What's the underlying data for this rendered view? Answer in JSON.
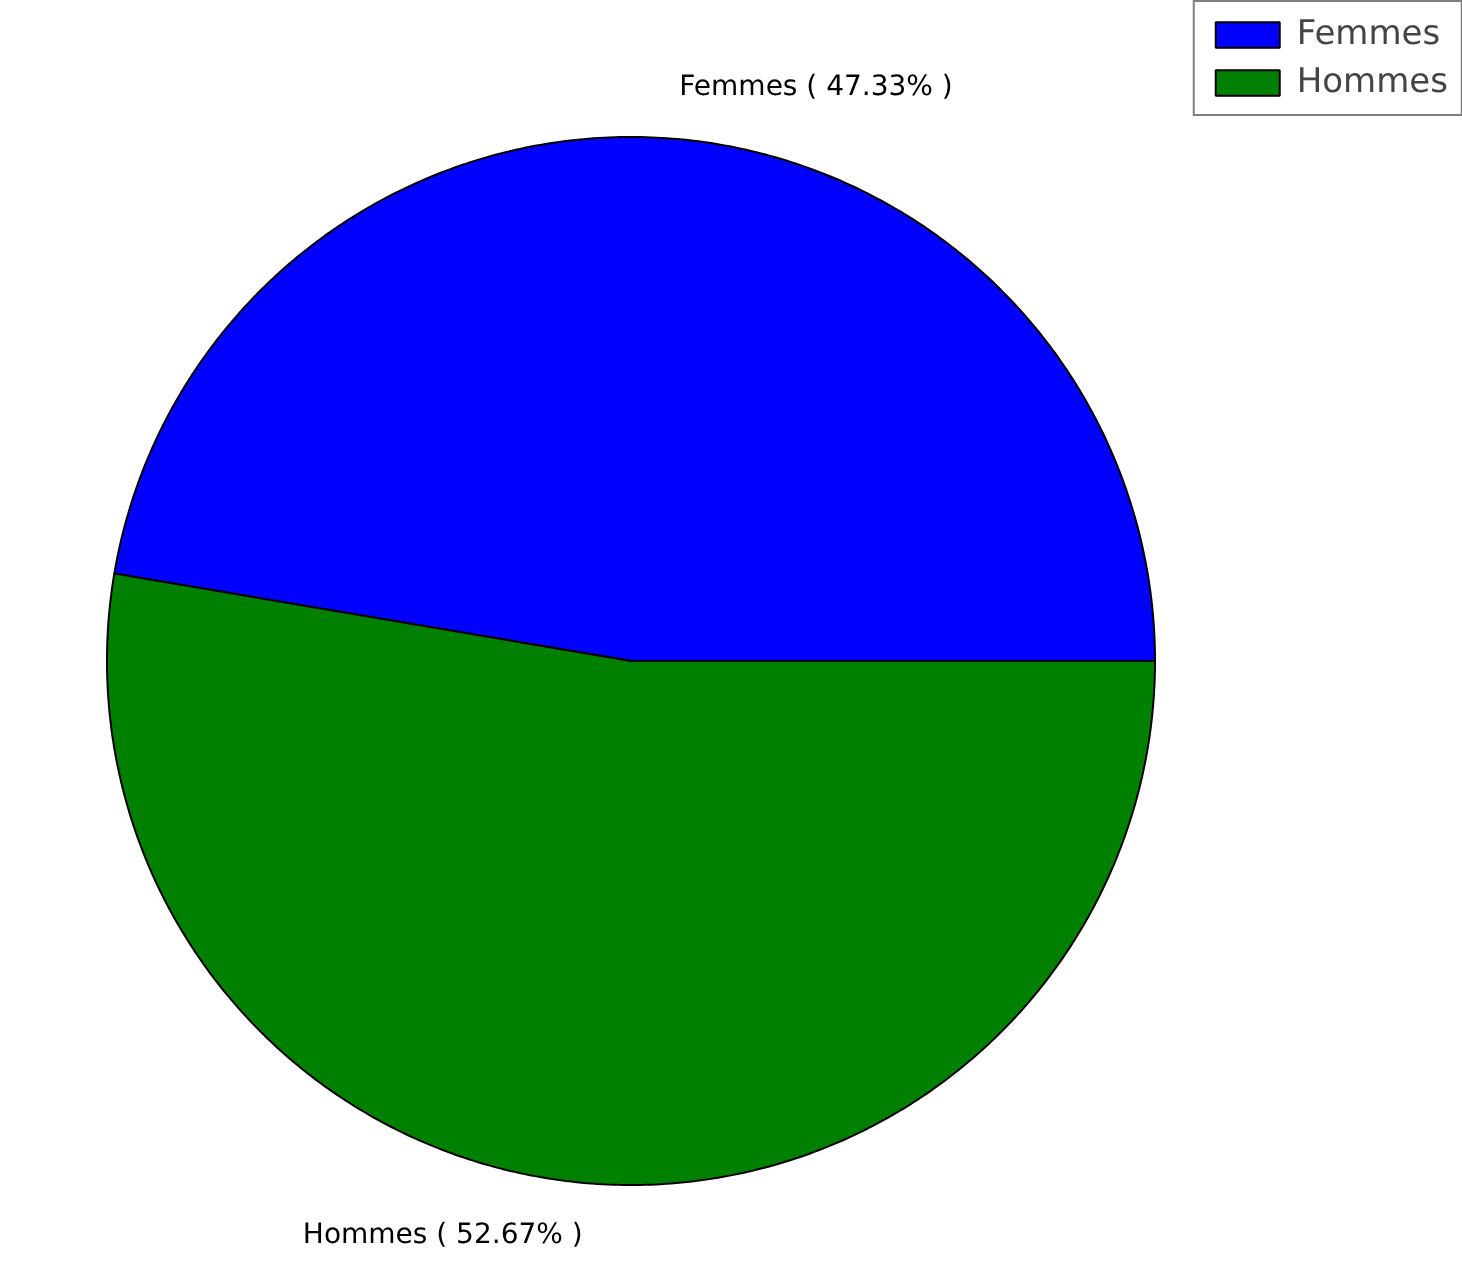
{
  "chart_data": {
    "type": "pie",
    "categories": [
      "Femmes",
      "Hommes"
    ],
    "values": [
      47.33,
      52.67
    ],
    "colors": [
      "#0000ff",
      "#008000"
    ],
    "value_labels": [
      "Femmes ( 47.33% )",
      "Hommes ( 52.67% )"
    ],
    "legend": "top right"
  }
}
